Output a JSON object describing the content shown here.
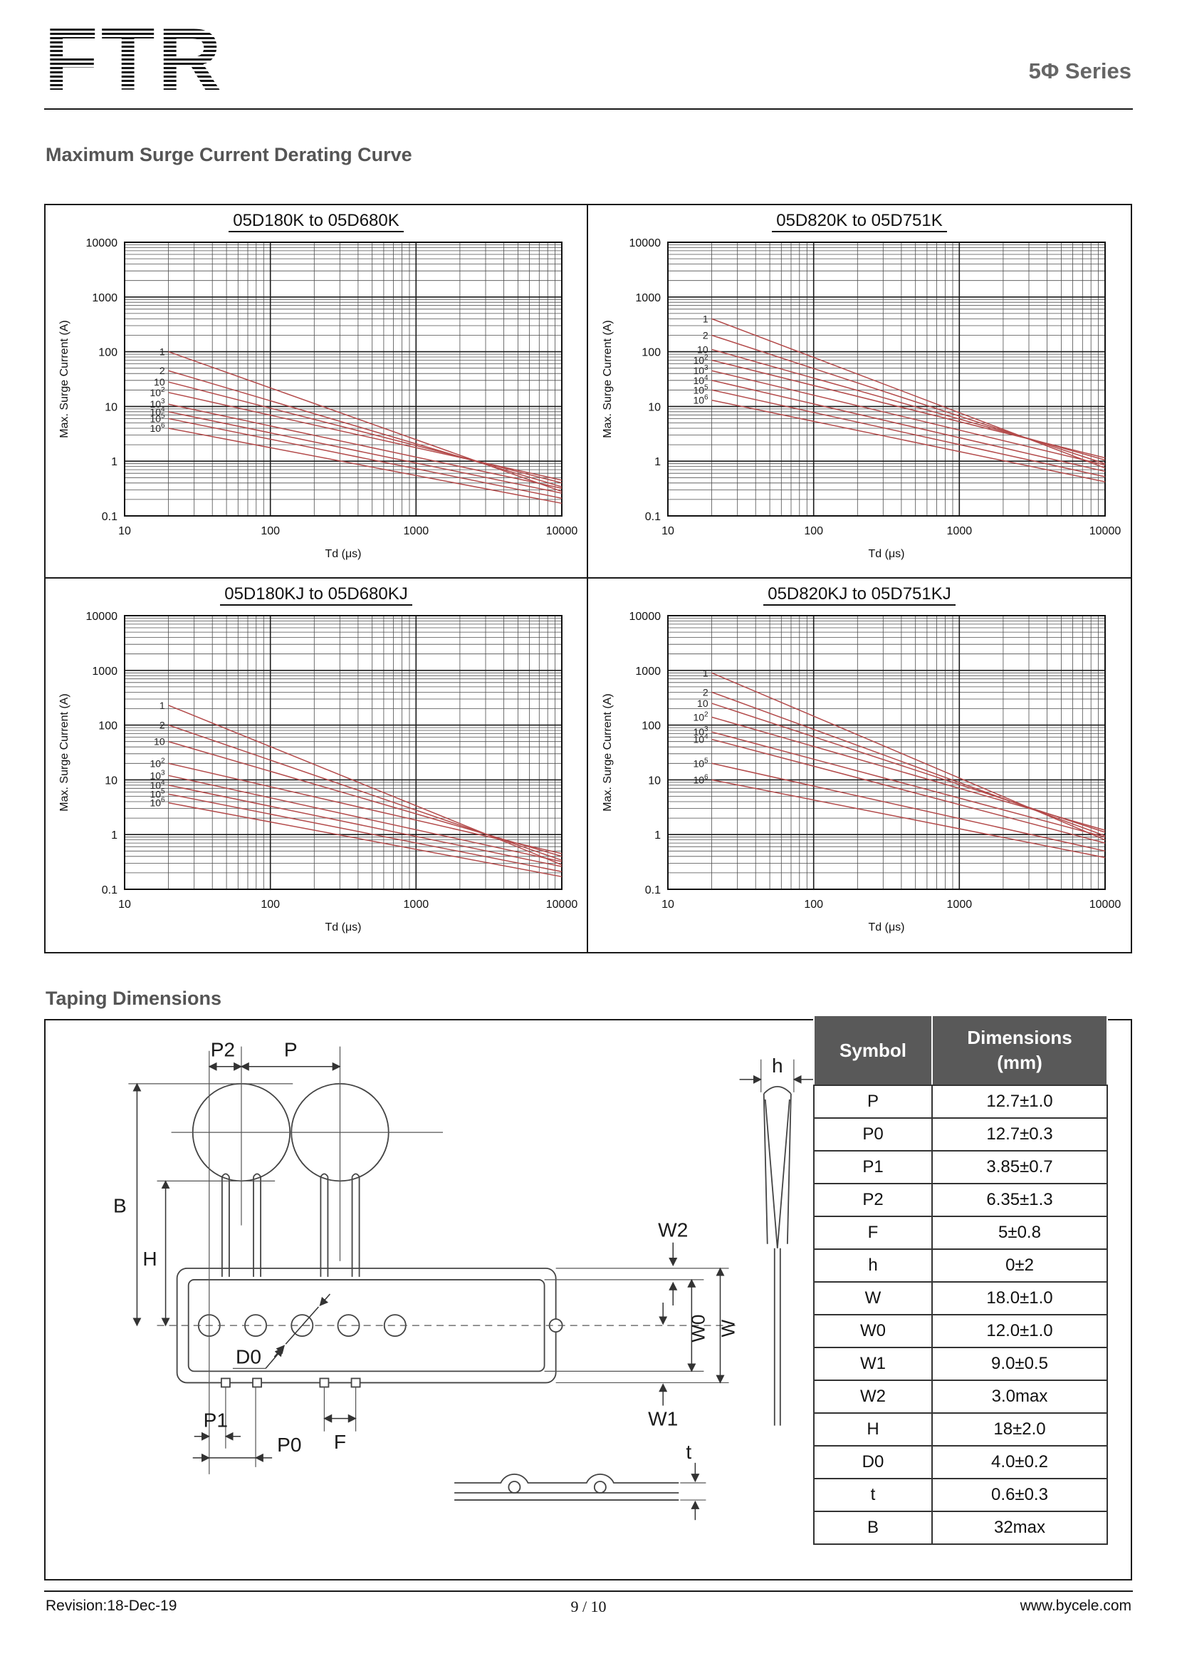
{
  "header": {
    "logo_text": "FTR",
    "series_label": "5Φ Series"
  },
  "sections": {
    "surge_title": "Maximum Surge Current Derating Curve",
    "taping_title": "Taping Dimensions"
  },
  "chart_data": [
    {
      "type": "line",
      "title": "05D180K to 05D680K",
      "xlabel": "Td (μs)",
      "ylabel": "Max. Surge Current (A)",
      "xlim": [
        10,
        10000
      ],
      "ylim": [
        0.1,
        10000
      ],
      "grid": "log-log",
      "x_ticks": [
        "10",
        "100",
        "1000",
        "10000"
      ],
      "y_ticks": [
        "10000",
        "1000",
        "100",
        "10",
        "1",
        "0.1"
      ],
      "curve_color": "#b34a4a",
      "series": [
        {
          "name": "1",
          "x": [
            20,
            10000
          ],
          "y": [
            100,
            0.28
          ]
        },
        {
          "name": "2",
          "x": [
            20,
            10000
          ],
          "y": [
            45,
            0.34
          ]
        },
        {
          "name": "10",
          "x": [
            20,
            10000
          ],
          "y": [
            28,
            0.4
          ]
        },
        {
          "name": "10^2",
          "x": [
            20,
            10000
          ],
          "y": [
            18,
            0.45
          ]
        },
        {
          "name": "10^3",
          "x": [
            20,
            10000
          ],
          "y": [
            11,
            0.32
          ]
        },
        {
          "name": "10^4",
          "x": [
            20,
            10000
          ],
          "y": [
            8,
            0.26
          ]
        },
        {
          "name": "10^5",
          "x": [
            20,
            10000
          ],
          "y": [
            6,
            0.21
          ]
        },
        {
          "name": "10^6",
          "x": [
            20,
            10000
          ],
          "y": [
            4,
            0.17
          ]
        }
      ]
    },
    {
      "type": "line",
      "title": "05D820K to 05D751K",
      "xlabel": "Td (μs)",
      "ylabel": "Max. Surge Current (A)",
      "xlim": [
        10,
        10000
      ],
      "ylim": [
        0.1,
        10000
      ],
      "grid": "log-log",
      "x_ticks": [
        "10",
        "100",
        "1000",
        "10000"
      ],
      "y_ticks": [
        "10000",
        "1000",
        "100",
        "10",
        "1",
        "0.1"
      ],
      "curve_color": "#b34a4a",
      "series": [
        {
          "name": "1",
          "x": [
            20,
            10000
          ],
          "y": [
            400,
            0.75
          ]
        },
        {
          "name": "2",
          "x": [
            20,
            10000
          ],
          "y": [
            200,
            0.9
          ]
        },
        {
          "name": "10",
          "x": [
            20,
            10000
          ],
          "y": [
            110,
            1.05
          ]
        },
        {
          "name": "10^2",
          "x": [
            20,
            10000
          ],
          "y": [
            70,
            1.15
          ]
        },
        {
          "name": "10^3",
          "x": [
            20,
            10000
          ],
          "y": [
            45,
            0.85
          ]
        },
        {
          "name": "10^4",
          "x": [
            20,
            10000
          ],
          "y": [
            30,
            0.65
          ]
        },
        {
          "name": "10^5",
          "x": [
            20,
            10000
          ],
          "y": [
            20,
            0.52
          ]
        },
        {
          "name": "10^6",
          "x": [
            20,
            10000
          ],
          "y": [
            13,
            0.42
          ]
        }
      ]
    },
    {
      "type": "line",
      "title": "05D180KJ to 05D680KJ",
      "xlabel": "Td (μs)",
      "ylabel": "Max. Surge Current (A)",
      "xlim": [
        10,
        10000
      ],
      "ylim": [
        0.1,
        10000
      ],
      "grid": "log-log",
      "x_ticks": [
        "10",
        "100",
        "1000",
        "10000"
      ],
      "y_ticks": [
        "10000",
        "1000",
        "100",
        "10",
        "1",
        "0.1"
      ],
      "curve_color": "#b34a4a",
      "series": [
        {
          "name": "1",
          "x": [
            20,
            10000
          ],
          "y": [
            230,
            0.28
          ]
        },
        {
          "name": "2",
          "x": [
            20,
            10000
          ],
          "y": [
            100,
            0.34
          ]
        },
        {
          "name": "10",
          "x": [
            20,
            10000
          ],
          "y": [
            50,
            0.4
          ]
        },
        {
          "name": "10^2",
          "x": [
            20,
            10000
          ],
          "y": [
            20,
            0.45
          ]
        },
        {
          "name": "10^3",
          "x": [
            20,
            10000
          ],
          "y": [
            12,
            0.32
          ]
        },
        {
          "name": "10^4",
          "x": [
            20,
            10000
          ],
          "y": [
            8,
            0.26
          ]
        },
        {
          "name": "10^5",
          "x": [
            20,
            10000
          ],
          "y": [
            5.5,
            0.21
          ]
        },
        {
          "name": "10^6",
          "x": [
            20,
            10000
          ],
          "y": [
            3.8,
            0.17
          ]
        }
      ]
    },
    {
      "type": "line",
      "title": "05D820KJ to 05D751KJ",
      "xlabel": "Td (μs)",
      "ylabel": "Max. Surge Current (A)",
      "xlim": [
        10,
        10000
      ],
      "ylim": [
        0.1,
        10000
      ],
      "grid": "log-log",
      "x_ticks": [
        "10",
        "100",
        "1000",
        "10000"
      ],
      "y_ticks": [
        "10000",
        "1000",
        "100",
        "10",
        "1",
        "0.1"
      ],
      "curve_color": "#b34a4a",
      "series": [
        {
          "name": "1",
          "x": [
            20,
            10000
          ],
          "y": [
            900,
            0.8
          ]
        },
        {
          "name": "2",
          "x": [
            20,
            10000
          ],
          "y": [
            400,
            0.95
          ]
        },
        {
          "name": "10",
          "x": [
            20,
            10000
          ],
          "y": [
            250,
            1.1
          ]
        },
        {
          "name": "10^2",
          "x": [
            20,
            10000
          ],
          "y": [
            140,
            1.2
          ]
        },
        {
          "name": "10^3",
          "x": [
            20,
            10000
          ],
          "y": [
            75,
            0.9
          ]
        },
        {
          "name": "10^4",
          "x": [
            20,
            10000
          ],
          "y": [
            55,
            0.7
          ]
        },
        {
          "name": "10^5",
          "x": [
            20,
            10000
          ],
          "y": [
            20,
            0.5
          ]
        },
        {
          "name": "10^6",
          "x": [
            20,
            10000
          ],
          "y": [
            10,
            0.38
          ]
        }
      ]
    }
  ],
  "taping": {
    "labels": {
      "P": "P",
      "P0": "P0",
      "P1": "P1",
      "P2": "P2",
      "F": "F",
      "h": "h",
      "W": "W",
      "W0": "W0",
      "W1": "W1",
      "W2": "W2",
      "H": "H",
      "D0": "D0",
      "t": "t",
      "B": "B"
    },
    "table": {
      "header_symbol": "Symbol",
      "header_dim_line1": "Dimensions",
      "header_dim_line2": "(mm)",
      "rows": [
        [
          "P",
          "12.7±1.0"
        ],
        [
          "P0",
          "12.7±0.3"
        ],
        [
          "P1",
          "3.85±0.7"
        ],
        [
          "P2",
          "6.35±1.3"
        ],
        [
          "F",
          "5±0.8"
        ],
        [
          "h",
          "0±2"
        ],
        [
          "W",
          "18.0±1.0"
        ],
        [
          "W0",
          "12.0±1.0"
        ],
        [
          "W1",
          "9.0±0.5"
        ],
        [
          "W2",
          "3.0max"
        ],
        [
          "H",
          "18±2.0"
        ],
        [
          "D0",
          "4.0±0.2"
        ],
        [
          "t",
          "0.6±0.3"
        ],
        [
          "B",
          "32max"
        ]
      ]
    }
  },
  "footer": {
    "revision": "Revision:18-Dec-19",
    "page": "9 / 10",
    "website": "www.bycele.com"
  }
}
